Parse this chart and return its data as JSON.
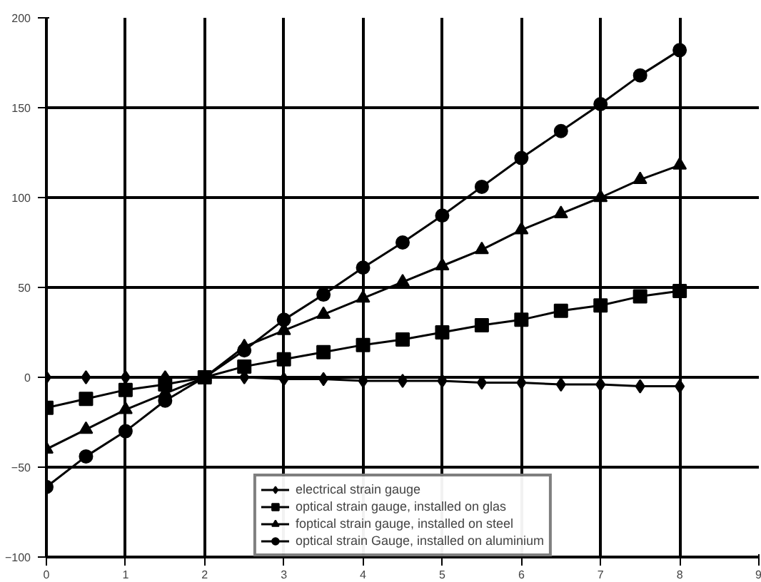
{
  "chart_data": {
    "type": "line",
    "x": [
      0,
      0.5,
      1,
      1.5,
      2,
      2.5,
      3,
      3.5,
      4,
      4.5,
      5,
      5.5,
      6,
      6.5,
      7,
      7.5,
      8
    ],
    "series": [
      {
        "name": "electrical strain gauge",
        "color": "#000000",
        "marker": "diamond",
        "values": [
          0,
          0,
          0,
          0,
          0,
          0,
          -1,
          -1,
          -2,
          -2,
          -2,
          -3,
          -3,
          -4,
          -4,
          -5,
          -5
        ]
      },
      {
        "name": "optical strain gauge, installed on glas",
        "color": "#000000",
        "marker": "square",
        "values": [
          -17,
          -12,
          -7,
          -4,
          0,
          6,
          10,
          14,
          18,
          21,
          25,
          29,
          32,
          37,
          40,
          45,
          48
        ]
      },
      {
        "name": "foptical strain gauge, installed on steel",
        "color": "#000000",
        "marker": "triangle",
        "values": [
          -40,
          -29,
          -18,
          -9,
          0,
          17,
          26,
          35,
          44,
          53,
          62,
          71,
          82,
          91,
          100,
          110,
          118
        ]
      },
      {
        "name": "optical strain Gauge, installed on aluminium",
        "color": "#000000",
        "marker": "circle",
        "values": [
          -61,
          -44,
          -30,
          -13,
          0,
          15,
          32,
          46,
          61,
          75,
          90,
          106,
          122,
          137,
          152,
          168,
          182
        ]
      }
    ],
    "xlim": [
      0,
      9
    ],
    "xticks": [
      0,
      1,
      2,
      3,
      4,
      5,
      6,
      7,
      8,
      9
    ],
    "ylim": [
      -100,
      200
    ],
    "yticks": [
      -100,
      -50,
      0,
      50,
      100,
      150,
      200
    ],
    "grid": true,
    "legend": "bottom",
    "line_style": "solid"
  }
}
